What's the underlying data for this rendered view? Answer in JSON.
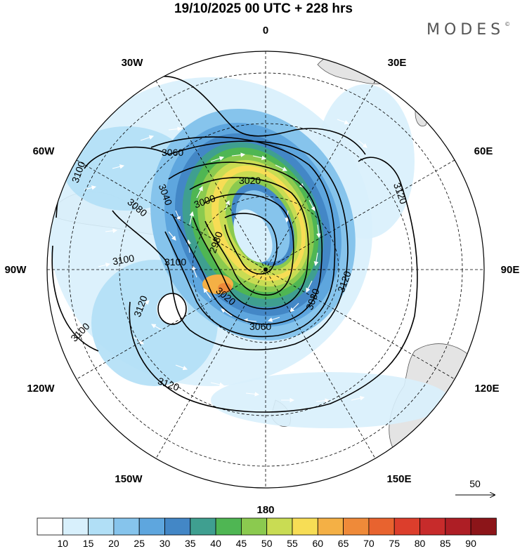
{
  "header": {
    "title": "19/10/2025  00 UTC  + 228 hrs",
    "brand": "MODES",
    "brand_mark": "©"
  },
  "map": {
    "projection": "south-polar-stereographic",
    "longitude_labels": {
      "lon_0": "0",
      "lon_30e": "30E",
      "lon_60e": "60E",
      "lon_90e": "90E",
      "lon_120e": "120E",
      "lon_150e": "150E",
      "lon_180": "180",
      "lon_150w": "150W",
      "lon_120w": "120W",
      "lon_90w": "90W",
      "lon_60w": "60W",
      "lon_30w": "30W"
    },
    "contour_labels": {
      "c3100_a": "3100",
      "c3100_b": "3100",
      "c3100_c": "3100",
      "c3100_d": "3100",
      "c3120_a": "3120",
      "c3120_b": "3120",
      "c3120_c": "3120",
      "c3120_d": "3120",
      "c3080_a": "3080",
      "c3080_b": "3080",
      "c3060_a": "3060",
      "c3060_b": "3060",
      "c3040": "3040",
      "c3020_a": "3020",
      "c3020_b": "3020",
      "c3000": "3000",
      "c2980": "2980"
    },
    "reference_vector": {
      "label": "50"
    },
    "colors": {
      "land": "#e6e6e6",
      "contour": "#000000",
      "vectors": "#ffffff",
      "grid": "#000000"
    }
  },
  "colorbar": {
    "ticks": [
      "10",
      "15",
      "20",
      "25",
      "30",
      "35",
      "40",
      "45",
      "50",
      "55",
      "60",
      "65",
      "70",
      "75",
      "80",
      "85",
      "90"
    ],
    "colors": [
      "#ffffff",
      "#d8f0fc",
      "#b1dff6",
      "#86c4ec",
      "#5ea6de",
      "#4387c6",
      "#3f9f90",
      "#4fb653",
      "#8bca4f",
      "#c9dc53",
      "#f7dd55",
      "#f4b045",
      "#ef8a39",
      "#e8632f",
      "#dc3e2c",
      "#c72b2b",
      "#ae1e25",
      "#8c1519"
    ]
  }
}
